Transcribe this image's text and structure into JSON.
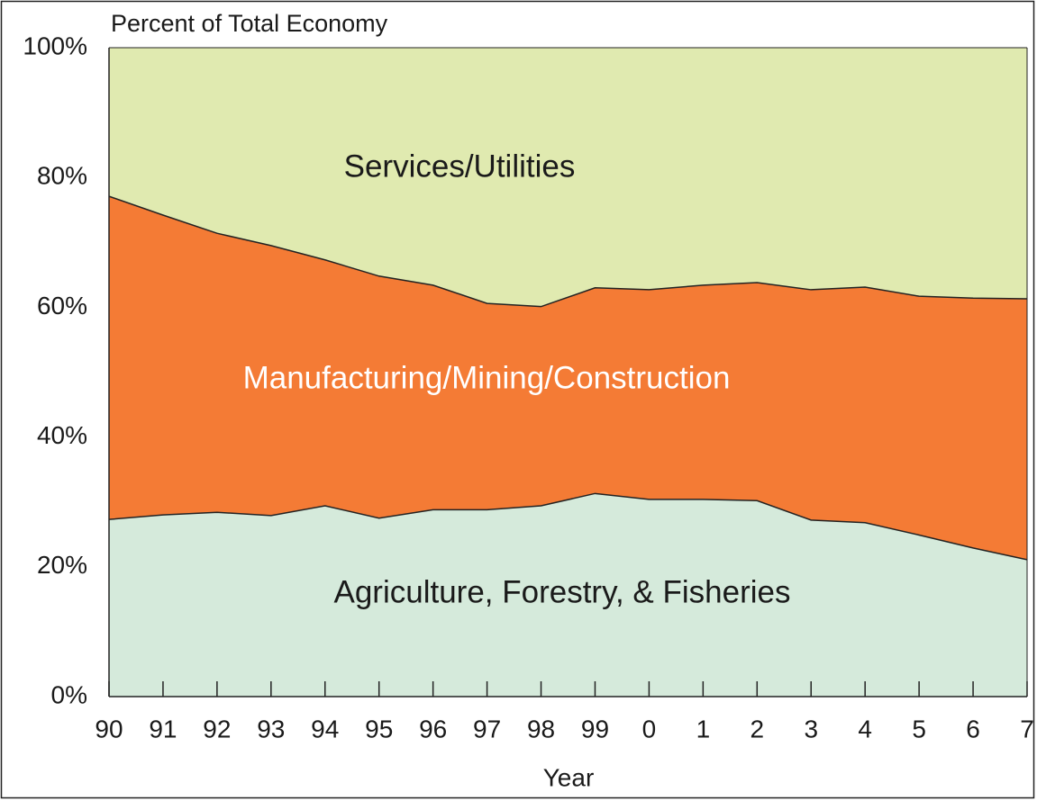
{
  "chart_data": {
    "type": "stacked_area",
    "title": "Percent of Total Economy",
    "x_label": "Year",
    "categories": [
      "90",
      "91",
      "92",
      "93",
      "94",
      "95",
      "96",
      "97",
      "98",
      "99",
      "0",
      "1",
      "2",
      "3",
      "4",
      "5",
      "6",
      "7"
    ],
    "series": [
      {
        "name": "Agriculture, Forestry, & Fisheries",
        "color": "#d5eadb",
        "values": [
          27.3,
          28.0,
          28.4,
          27.9,
          29.4,
          27.5,
          28.8,
          28.8,
          29.4,
          31.3,
          30.4,
          30.4,
          30.2,
          27.2,
          26.8,
          24.9,
          22.9,
          21.1
        ]
      },
      {
        "name": "Manufacturing/Mining/Construction",
        "color": "#f47b35",
        "values": [
          49.8,
          46.2,
          43.0,
          41.6,
          37.9,
          37.3,
          34.6,
          31.8,
          30.7,
          31.7,
          32.3,
          33.0,
          33.6,
          35.5,
          36.3,
          36.8,
          38.5,
          40.2
        ]
      },
      {
        "name": "Services/Utilities",
        "color": "#e0eab0",
        "values": [
          22.9,
          25.8,
          28.6,
          30.5,
          32.7,
          35.2,
          36.6,
          39.4,
          39.9,
          37.0,
          37.3,
          36.6,
          36.2,
          37.3,
          36.9,
          38.3,
          38.6,
          38.7
        ]
      }
    ],
    "ylim": [
      0,
      100
    ],
    "yticks": [
      {
        "value": 0,
        "label": "0%"
      },
      {
        "value": 20,
        "label": "20%"
      },
      {
        "value": 40,
        "label": "40%"
      },
      {
        "value": 60,
        "label": "60%"
      },
      {
        "value": 80,
        "label": "80%"
      },
      {
        "value": 100,
        "label": "100%"
      }
    ],
    "grid": false
  }
}
